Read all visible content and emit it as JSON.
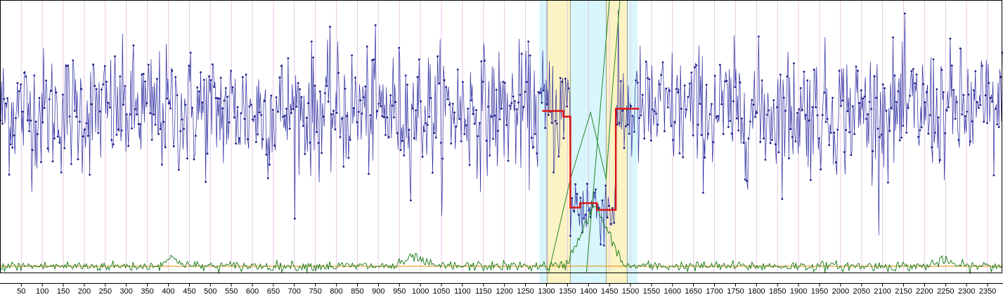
{
  "colors": {
    "background": "#ffffff",
    "grid": "#e8c8e8",
    "data_line": "#2a2aa0",
    "data_point": "#1c1c88",
    "fit_line": "#dd1111",
    "bottom_line": "#117711",
    "baseline": "#e08a00",
    "model_curve": "#228822",
    "band_cyan": "#d8f6fb",
    "band_yellow": "#fbf3c4",
    "band_edge": "#666666"
  },
  "chart_data": {
    "type": "line",
    "title": "",
    "xlabel": "",
    "ylabel": "",
    "xlim": [
      1,
      2385
    ],
    "xticks": [
      50,
      100,
      150,
      200,
      250,
      300,
      350,
      400,
      450,
      500,
      550,
      600,
      650,
      700,
      750,
      800,
      850,
      900,
      950,
      1000,
      1050,
      1100,
      1150,
      1200,
      1250,
      1300,
      1350,
      1400,
      1450,
      1500,
      1550,
      1600,
      1650,
      1700,
      1750,
      1800,
      1850,
      1900,
      1950,
      2000,
      2050,
      2100,
      2150,
      2200,
      2250,
      2300,
      2350
    ],
    "grid": true,
    "highlight_bands": [
      {
        "color": "cyan",
        "x": [
          1283,
          1302
        ]
      },
      {
        "color": "yellow",
        "x": [
          1302,
          1357
        ]
      },
      {
        "color": "cyan",
        "x": [
          1357,
          1442
        ]
      },
      {
        "color": "yellow",
        "x": [
          1442,
          1492
        ]
      },
      {
        "color": "cyan",
        "x": [
          1492,
          1517
        ]
      }
    ],
    "series": [
      {
        "kind": "noisy points",
        "n_points": 2385,
        "out_of_window_level": 0.0,
        "out_of_window_scatter": 0.5,
        "in_window_x": [
          1357,
          1465
        ],
        "in_window_level": -0.85,
        "in_window_scatter": 0.3
      },
      {
        "kind": "step fit",
        "x": [
          1290,
          1340,
          1340,
          1357,
          1357,
          1380,
          1380,
          1420,
          1420,
          1465,
          1465,
          1520
        ],
        "y": [
          0.0,
          0.0,
          -0.05,
          -0.05,
          -0.86,
          -0.86,
          -0.82,
          -0.82,
          -0.88,
          -0.88,
          0.02,
          0.02
        ]
      },
      {
        "kind": "model curve",
        "x": [
          1305,
          1357,
          1405,
          1442,
          1458,
          1475
        ],
        "y": [
          -1.55,
          -0.55,
          0.0,
          -0.55,
          -0.85,
          -1.15
        ]
      },
      {
        "kind": "residual trace",
        "peaks": [
          {
            "x": 410,
            "level": 0.28
          },
          {
            "x": 985,
            "level": 0.33
          },
          {
            "x": 1415,
            "level": 2.2
          },
          {
            "x": 2245,
            "level": 0.19
          }
        ],
        "baseline": 0
      }
    ]
  }
}
